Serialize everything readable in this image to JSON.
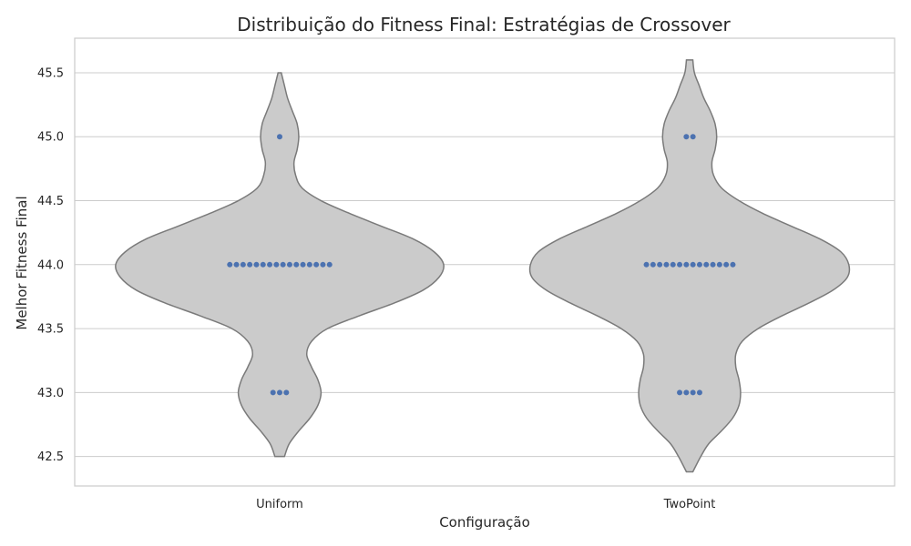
{
  "chart_data": {
    "type": "violin",
    "title": "Distribuição do Fitness Final: Estratégias de Crossover",
    "xlabel": "Configuração",
    "ylabel": "Melhor Fitness Final",
    "ylim": [
      42.27,
      45.77
    ],
    "yticks": [
      42.5,
      43.0,
      43.5,
      44.0,
      44.5,
      45.0,
      45.5
    ],
    "ytick_labels": [
      "42.5",
      "43.0",
      "43.5",
      "44.0",
      "44.5",
      "45.0",
      "45.5"
    ],
    "grid": true,
    "categories": [
      "Uniform",
      "TwoPoint"
    ],
    "series": [
      {
        "category": "Uniform",
        "range": [
          42.5,
          45.5
        ],
        "points": [
          {
            "value": 45.0,
            "count": 1
          },
          {
            "value": 44.0,
            "count": 16
          },
          {
            "value": 43.0,
            "count": 3
          }
        ],
        "density_profile": [
          [
            42.5,
            0.03
          ],
          [
            42.6,
            0.06
          ],
          [
            42.7,
            0.12
          ],
          [
            42.8,
            0.19
          ],
          [
            42.9,
            0.24
          ],
          [
            43.0,
            0.26
          ],
          [
            43.1,
            0.24
          ],
          [
            43.2,
            0.2
          ],
          [
            43.3,
            0.17
          ],
          [
            43.4,
            0.2
          ],
          [
            43.5,
            0.3
          ],
          [
            43.6,
            0.5
          ],
          [
            43.7,
            0.72
          ],
          [
            43.8,
            0.9
          ],
          [
            43.9,
            1.0
          ],
          [
            44.0,
            1.03
          ],
          [
            44.1,
            0.97
          ],
          [
            44.2,
            0.84
          ],
          [
            44.3,
            0.64
          ],
          [
            44.4,
            0.44
          ],
          [
            44.5,
            0.26
          ],
          [
            44.6,
            0.14
          ],
          [
            44.7,
            0.1
          ],
          [
            44.8,
            0.09
          ],
          [
            44.9,
            0.11
          ],
          [
            45.0,
            0.12
          ],
          [
            45.1,
            0.11
          ],
          [
            45.2,
            0.08
          ],
          [
            45.3,
            0.05
          ],
          [
            45.4,
            0.03
          ],
          [
            45.5,
            0.01
          ]
        ]
      },
      {
        "category": "TwoPoint",
        "range": [
          42.38,
          45.6
        ],
        "points": [
          {
            "value": 45.0,
            "count": 2
          },
          {
            "value": 44.0,
            "count": 14
          },
          {
            "value": 43.0,
            "count": 4
          }
        ],
        "density_profile": [
          [
            42.38,
            0.02
          ],
          [
            42.5,
            0.07
          ],
          [
            42.6,
            0.12
          ],
          [
            42.7,
            0.2
          ],
          [
            42.8,
            0.27
          ],
          [
            42.9,
            0.31
          ],
          [
            43.0,
            0.32
          ],
          [
            43.1,
            0.31
          ],
          [
            43.2,
            0.29
          ],
          [
            43.3,
            0.29
          ],
          [
            43.4,
            0.33
          ],
          [
            43.5,
            0.43
          ],
          [
            43.6,
            0.58
          ],
          [
            43.7,
            0.75
          ],
          [
            43.8,
            0.9
          ],
          [
            43.9,
            0.99
          ],
          [
            44.0,
            1.0
          ],
          [
            44.1,
            0.95
          ],
          [
            44.2,
            0.82
          ],
          [
            44.3,
            0.64
          ],
          [
            44.4,
            0.46
          ],
          [
            44.5,
            0.31
          ],
          [
            44.6,
            0.2
          ],
          [
            44.7,
            0.15
          ],
          [
            44.8,
            0.14
          ],
          [
            44.9,
            0.16
          ],
          [
            45.0,
            0.17
          ],
          [
            45.1,
            0.16
          ],
          [
            45.2,
            0.13
          ],
          [
            45.3,
            0.09
          ],
          [
            45.4,
            0.06
          ],
          [
            45.5,
            0.03
          ],
          [
            45.6,
            0.02
          ]
        ]
      }
    ],
    "colors": {
      "violin_fill": "#cbcbcb",
      "violin_edge": "#7a7a7a",
      "points": "#4c72b0",
      "grid": "#cccccc",
      "text": "#262626"
    }
  }
}
